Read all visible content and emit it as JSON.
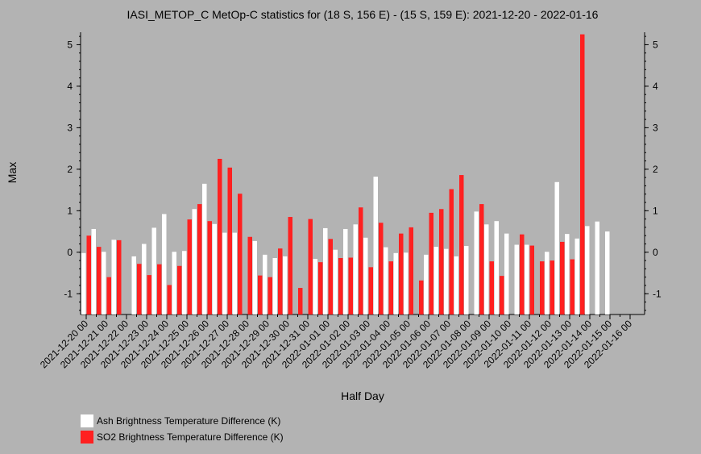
{
  "chart_data": {
    "type": "bar",
    "title": "IASI_METOP_C MetOp-C statistics for (18 S, 156 E) - (15 S, 159 E): 2021-12-20 - 2022-01-16",
    "xlabel": "Half Day",
    "ylabel": "Max",
    "ylim": [
      -1.5,
      5.3
    ],
    "yticks": [
      -1,
      0,
      1,
      2,
      3,
      4,
      5
    ],
    "xtick_labels": [
      "2021-12-20 00",
      "2021-12-21 00",
      "2021-12-22 00",
      "2021-12-23 00",
      "2021-12-24 00",
      "2021-12-25 00",
      "2021-12-26 00",
      "2021-12-27 00",
      "2021-12-28 00",
      "2021-12-29 00",
      "2021-12-30 00",
      "2021-12-31 00",
      "2022-01-01 00",
      "2022-01-02 00",
      "2022-01-03 00",
      "2022-01-04 00",
      "2022-01-05 00",
      "2022-01-06 00",
      "2022-01-07 00",
      "2022-01-08 00",
      "2022-01-09 00",
      "2022-01-10 00",
      "2022-01-11 00",
      "2022-01-12 00",
      "2022-01-13 00",
      "2022-01-14 00",
      "2022-01-15 00",
      "2022-01-16 00"
    ],
    "categories": [
      "2021-12-20 00",
      "2021-12-20 12",
      "2021-12-21 00",
      "2021-12-21 12",
      "2021-12-22 00",
      "2021-12-22 12",
      "2021-12-23 00",
      "2021-12-23 12",
      "2021-12-24 00",
      "2021-12-24 12",
      "2021-12-25 00",
      "2021-12-25 12",
      "2021-12-26 00",
      "2021-12-26 12",
      "2021-12-27 00",
      "2021-12-27 12",
      "2021-12-28 00",
      "2021-12-28 12",
      "2021-12-29 00",
      "2021-12-29 12",
      "2021-12-30 00",
      "2021-12-30 12",
      "2021-12-31 00",
      "2021-12-31 12",
      "2022-01-01 00",
      "2022-01-01 12",
      "2022-01-02 00",
      "2022-01-02 12",
      "2022-01-03 00",
      "2022-01-03 12",
      "2022-01-04 00",
      "2022-01-04 12",
      "2022-01-05 00",
      "2022-01-05 12",
      "2022-01-06 00",
      "2022-01-06 12",
      "2022-01-07 00",
      "2022-01-07 12",
      "2022-01-08 00",
      "2022-01-08 12",
      "2022-01-09 00",
      "2022-01-09 12",
      "2022-01-10 00",
      "2022-01-10 12",
      "2022-01-11 00",
      "2022-01-11 12",
      "2022-01-12 00",
      "2022-01-12 12",
      "2022-01-13 00",
      "2022-01-13 12",
      "2022-01-14 00",
      "2022-01-14 12",
      "2022-01-15 00",
      "2022-01-15 12",
      "2022-01-16 00"
    ],
    "series": [
      {
        "name": "Ash Brightness Temperature Difference (K)",
        "color": "#ffffff",
        "values": [
          -0.02,
          0.56,
          0.01,
          0.3,
          null,
          -0.1,
          0.2,
          0.59,
          0.92,
          0.01,
          0.03,
          1.04,
          1.65,
          0.68,
          0.47,
          0.47,
          null,
          0.27,
          -0.06,
          -0.14,
          -0.1,
          null,
          null,
          -0.16,
          0.58,
          0.06,
          0.56,
          0.67,
          0.35,
          1.82,
          0.12,
          -0.02,
          -0.01,
          null,
          -0.06,
          0.13,
          0.08,
          -0.1,
          0.15,
          0.98,
          0.67,
          0.75,
          0.45,
          0.18,
          0.18,
          null,
          0.01,
          1.69,
          0.44,
          0.33,
          0.63,
          0.74,
          0.5,
          null,
          null
        ]
      },
      {
        "name": "SO2 Brightness Temperature Difference (K)",
        "color": "#ff2020",
        "values": [
          0.4,
          0.13,
          -0.6,
          0.29,
          null,
          -0.28,
          -0.55,
          -0.29,
          -0.79,
          -0.33,
          0.79,
          1.16,
          0.75,
          2.25,
          2.04,
          1.41,
          0.37,
          -0.56,
          -0.6,
          0.09,
          0.85,
          -0.86,
          0.8,
          -0.24,
          0.32,
          -0.14,
          -0.13,
          1.08,
          -0.36,
          0.71,
          -0.22,
          0.45,
          0.6,
          -0.68,
          0.95,
          1.04,
          1.52,
          1.86,
          null,
          1.16,
          -0.22,
          -0.57,
          null,
          0.43,
          0.16,
          -0.22,
          -0.2,
          0.25,
          -0.17,
          5.25,
          null,
          null,
          null,
          null,
          null
        ]
      }
    ],
    "legend_position": "bottom-left",
    "grid": false
  }
}
